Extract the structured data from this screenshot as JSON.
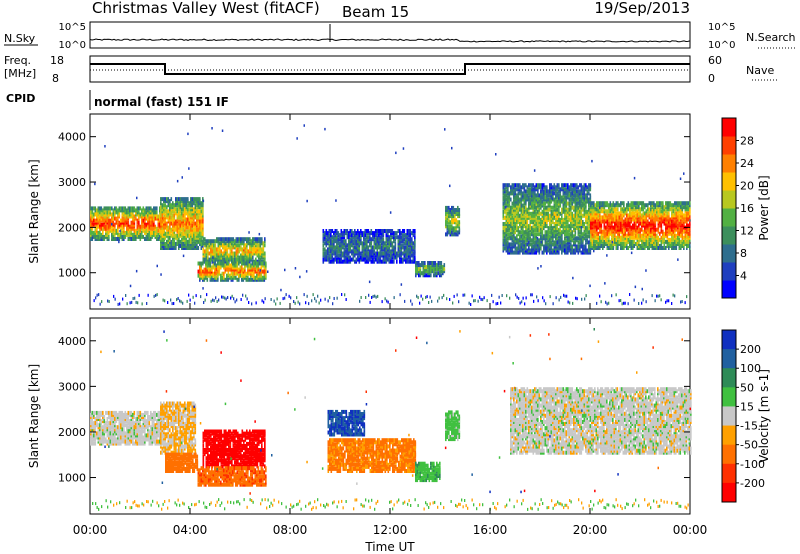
{
  "header": {
    "title": "Christmas Valley West (fitACF)",
    "beam": "Beam 15",
    "date": "19/Sep/2013"
  },
  "top_panels": {
    "nsky_label": "N.Sky",
    "nsearch_label": "N.Search",
    "nsky_ticks": [
      "10^5",
      "10^0"
    ],
    "freq_label_line1": "Freq.",
    "freq_label_line2": "[MHz]",
    "freq_ticks": [
      "18",
      "8"
    ],
    "nave_label": "Nave",
    "nave_ticks": [
      "60",
      "0"
    ],
    "cpid_label": "CPID",
    "cpid_value": "normal (fast) 151 IF"
  },
  "chart_data": [
    {
      "type": "heatmap",
      "title": "",
      "variable": "Power [dB]",
      "ylabel": "Slant Range [km]",
      "xlabel": "",
      "xlim": [
        "00:00",
        "24:00"
      ],
      "ylim": [
        200,
        4500
      ],
      "yticks": [
        1000,
        2000,
        3000,
        4000
      ],
      "xticks": [
        "00:00",
        "04:00",
        "08:00",
        "12:00",
        "16:00",
        "20:00",
        "00:00"
      ],
      "colorbar": {
        "label": "Power [dB]",
        "ticks": [
          "28",
          "24",
          "20",
          "16",
          "12",
          "8",
          "4"
        ],
        "colors": [
          "#0000ff",
          "#1f3fbf",
          "#2e6e8e",
          "#3c8f5c",
          "#52b043",
          "#b8c820",
          "#ffc000",
          "#ff8000",
          "#ff4000",
          "#ff0000"
        ]
      },
      "regions": [
        {
          "t_start": 0.0,
          "t_end": 3.0,
          "r_min": 1700,
          "r_max": 2400,
          "level": 0.75
        },
        {
          "t_start": 2.8,
          "t_end": 4.5,
          "r_min": 1500,
          "r_max": 2600,
          "level": 0.65
        },
        {
          "t_start": 4.5,
          "t_end": 7.0,
          "r_min": 1200,
          "r_max": 1700,
          "level": 0.6
        },
        {
          "t_start": 4.3,
          "t_end": 7.0,
          "r_min": 800,
          "r_max": 1200,
          "level": 0.7
        },
        {
          "t_start": 9.3,
          "t_end": 13.0,
          "r_min": 1200,
          "r_max": 1900,
          "level": 0.25
        },
        {
          "t_start": 13.0,
          "t_end": 14.2,
          "r_min": 900,
          "r_max": 1200,
          "level": 0.4
        },
        {
          "t_start": 14.2,
          "t_end": 14.8,
          "r_min": 1800,
          "r_max": 2400,
          "level": 0.5
        },
        {
          "t_start": 16.5,
          "t_end": 20.0,
          "r_min": 1400,
          "r_max": 2900,
          "level": 0.45
        },
        {
          "t_start": 20.0,
          "t_end": 24.0,
          "r_min": 1500,
          "r_max": 2500,
          "level": 0.8
        }
      ]
    },
    {
      "type": "heatmap",
      "title": "",
      "variable": "Velocity [m s-1]",
      "ylabel": "Slant Range [km]",
      "xlabel": "Time UT",
      "xlim": [
        "00:00",
        "24:00"
      ],
      "ylim": [
        200,
        4500
      ],
      "yticks": [
        1000,
        2000,
        3000,
        4000
      ],
      "xticks": [
        "00:00",
        "04:00",
        "08:00",
        "12:00",
        "16:00",
        "20:00",
        "00:00"
      ],
      "colorbar": {
        "label": "Velocity [m s-1]",
        "ticks": [
          "200",
          "100",
          "50",
          "15",
          "-15",
          "-50",
          "-100",
          "-200"
        ],
        "colors": [
          "#1030c0",
          "#2060a0",
          "#2e8b57",
          "#40c040",
          "#c8c8c8",
          "#ffa000",
          "#ff7000",
          "#ff3000",
          "#ff0000"
        ]
      },
      "regions": [
        {
          "t_start": 0.0,
          "t_end": 2.9,
          "r_min": 1700,
          "r_max": 2400,
          "velocity": 0
        },
        {
          "t_start": 2.8,
          "t_end": 4.2,
          "r_min": 1500,
          "r_max": 2600,
          "velocity": -20
        },
        {
          "t_start": 4.5,
          "t_end": 7.0,
          "r_min": 1200,
          "r_max": 2000,
          "velocity": -220
        },
        {
          "t_start": 4.3,
          "t_end": 7.0,
          "r_min": 800,
          "r_max": 1200,
          "velocity": -90
        },
        {
          "t_start": 3.0,
          "t_end": 4.3,
          "r_min": 1100,
          "r_max": 1500,
          "velocity": -70
        },
        {
          "t_start": 9.5,
          "t_end": 11.0,
          "r_min": 1900,
          "r_max": 2400,
          "velocity": 200
        },
        {
          "t_start": 9.5,
          "t_end": 13.0,
          "r_min": 1100,
          "r_max": 1800,
          "velocity": -60
        },
        {
          "t_start": 13.0,
          "t_end": 14.0,
          "r_min": 900,
          "r_max": 1300,
          "velocity": 40
        },
        {
          "t_start": 14.2,
          "t_end": 14.8,
          "r_min": 1800,
          "r_max": 2400,
          "velocity": 30
        },
        {
          "t_start": 16.8,
          "t_end": 24.0,
          "r_min": 1500,
          "r_max": 2900,
          "velocity": 0
        }
      ]
    }
  ]
}
